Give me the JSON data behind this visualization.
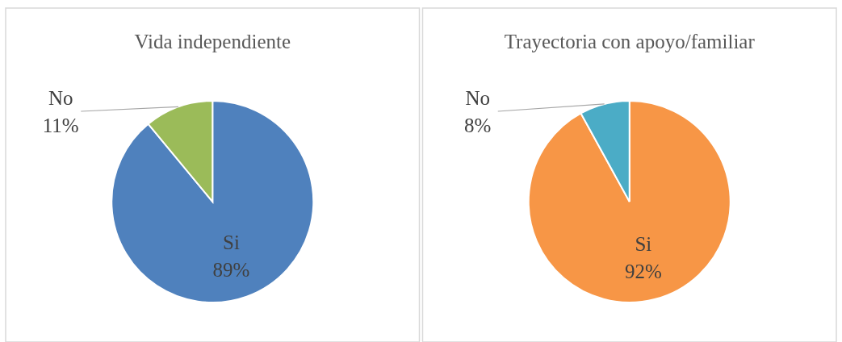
{
  "chart_data": [
    {
      "type": "pie",
      "title": "Vida independiente",
      "categories": [
        "Si",
        "No"
      ],
      "values": [
        89,
        11
      ],
      "colors": [
        "#4f81bd",
        "#9bbb59"
      ],
      "value_labels": [
        "89%",
        "11%"
      ]
    },
    {
      "type": "pie",
      "title": "Trayectoria con apoyo/familiar",
      "categories": [
        "Si",
        "No"
      ],
      "values": [
        92,
        8
      ],
      "colors": [
        "#f79646",
        "#4bacc6"
      ],
      "value_labels": [
        "92%",
        "8%"
      ]
    }
  ]
}
